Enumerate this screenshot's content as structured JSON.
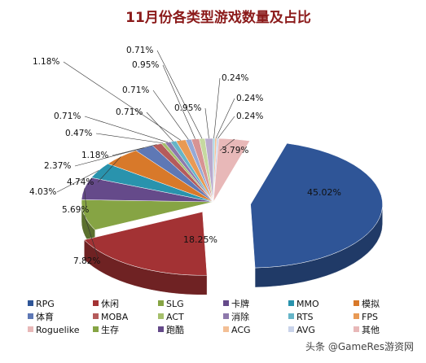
{
  "chart_data": {
    "type": "pie",
    "style": "3d-exploded",
    "title": "11月份各类型游戏数量及占比",
    "unit": "%",
    "slices": [
      {
        "name": "RPG",
        "value": 45.02,
        "color": "#2F5597"
      },
      {
        "name": "休闲",
        "value": 18.25,
        "color": "#A33234"
      },
      {
        "name": "SLG",
        "value": 7.82,
        "color": "#86A444"
      },
      {
        "name": "卡牌",
        "value": 5.69,
        "color": "#654A8A"
      },
      {
        "name": "MMO",
        "value": 4.03,
        "color": "#2993AD"
      },
      {
        "name": "模拟",
        "value": 4.74,
        "color": "#D8792A"
      },
      {
        "name": "体育",
        "value": 2.37,
        "color": "#5E78B5"
      },
      {
        "name": "MOBA",
        "value": 1.18,
        "color": "#B55B5B"
      },
      {
        "name": "ACT",
        "value": 0.47,
        "color": "#A5BF6B"
      },
      {
        "name": "消除",
        "value": 0.71,
        "color": "#8E79AC"
      },
      {
        "name": "RTS",
        "value": 0.71,
        "color": "#66B5C8"
      },
      {
        "name": "FPS",
        "value": 1.18,
        "color": "#E89A55"
      },
      {
        "name": "Roguelike",
        "value": 0.71,
        "color": "#95A9D6"
      },
      {
        "name": "生存",
        "value": 0.95,
        "color": "#D79393"
      },
      {
        "name": "跑酷",
        "value": 0.71,
        "color": "#C6D9A0"
      },
      {
        "name": "ACG",
        "value": 0.95,
        "color": "#B8AACE"
      },
      {
        "name": "AVG",
        "value": 0.24,
        "color": "#9BCFDD"
      },
      {
        "name": "其他",
        "value": 0.24,
        "color": "#F3BF95"
      },
      {
        "name": "其他",
        "value": 0.24,
        "color": "#C9D3EA"
      },
      {
        "name": "其他",
        "value": 3.79,
        "color": "#E8B8B8"
      }
    ],
    "legend": {
      "placement": "bottom",
      "entries": [
        {
          "name": "RPG",
          "color": "#2F5597"
        },
        {
          "name": "休闲",
          "color": "#A33234"
        },
        {
          "name": "SLG",
          "color": "#86A444"
        },
        {
          "name": "卡牌",
          "color": "#654A8A"
        },
        {
          "name": "MMO",
          "color": "#2993AD"
        },
        {
          "name": "模拟",
          "color": "#D8792A"
        },
        {
          "name": "体育",
          "color": "#5E78B5"
        },
        {
          "name": "MOBA",
          "color": "#B55B5B"
        },
        {
          "name": "ACT",
          "color": "#A5BF6B"
        },
        {
          "name": "消除",
          "color": "#8E79AC"
        },
        {
          "name": "RTS",
          "color": "#66B5C8"
        },
        {
          "name": "FPS",
          "color": "#E89A55"
        },
        {
          "name": "Roguelike",
          "color": "#E8B8B8"
        },
        {
          "name": "生存",
          "color": "#86A444"
        },
        {
          "name": "跑酷",
          "color": "#654A8A"
        },
        {
          "name": "ACG",
          "color": "#F3BF95"
        },
        {
          "name": "AVG",
          "color": "#C9D3EA"
        },
        {
          "name": "其他",
          "color": "#E8B8B8"
        }
      ]
    }
  },
  "watermark": "头条 @GameRes游资网"
}
